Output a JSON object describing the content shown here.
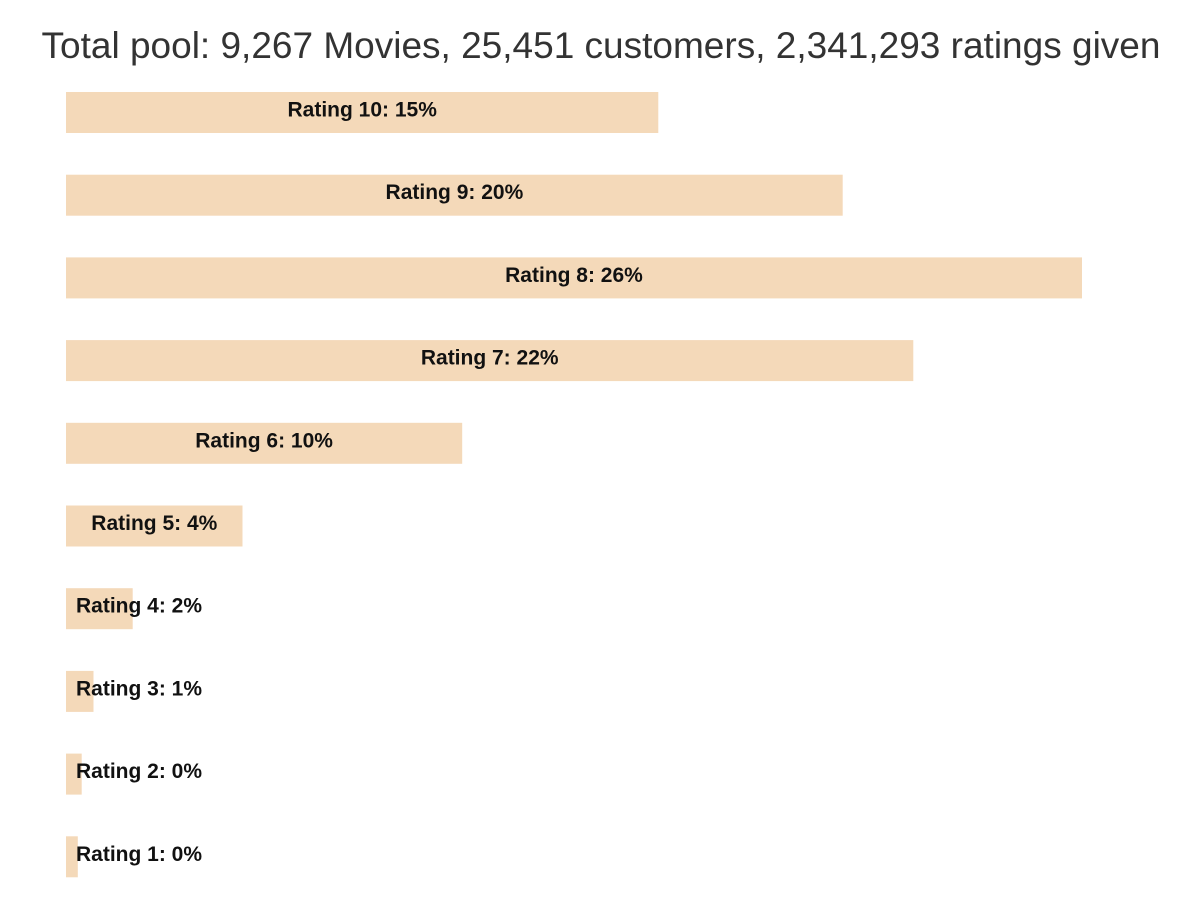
{
  "chart_data": {
    "type": "bar",
    "orientation": "horizontal",
    "title": "Total pool: 9,267 Movies, 25,451 customers, 2,341,293 ratings given",
    "bar_color": "#f4d9b9",
    "label_color": "#111111",
    "categories": [
      "Rating 10",
      "Rating 9",
      "Rating 8",
      "Rating 7",
      "Rating 6",
      "Rating 5",
      "Rating 4",
      "Rating 3",
      "Rating 2",
      "Rating 1"
    ],
    "values": [
      15.1,
      19.8,
      25.9,
      21.6,
      10.1,
      4.5,
      1.7,
      0.7,
      0.4,
      0.3
    ],
    "labels": [
      "Rating 10: 15%",
      "Rating 9: 20%",
      "Rating 8: 26%",
      "Rating 7: 22%",
      "Rating 6: 10%",
      "Rating 5: 4%",
      "Rating 4: 2%",
      "Rating 3: 1%",
      "Rating 2: 0%",
      "Rating 1: 0%"
    ],
    "xlim": [
      0,
      25.9
    ],
    "grid": false,
    "legend": "none"
  }
}
